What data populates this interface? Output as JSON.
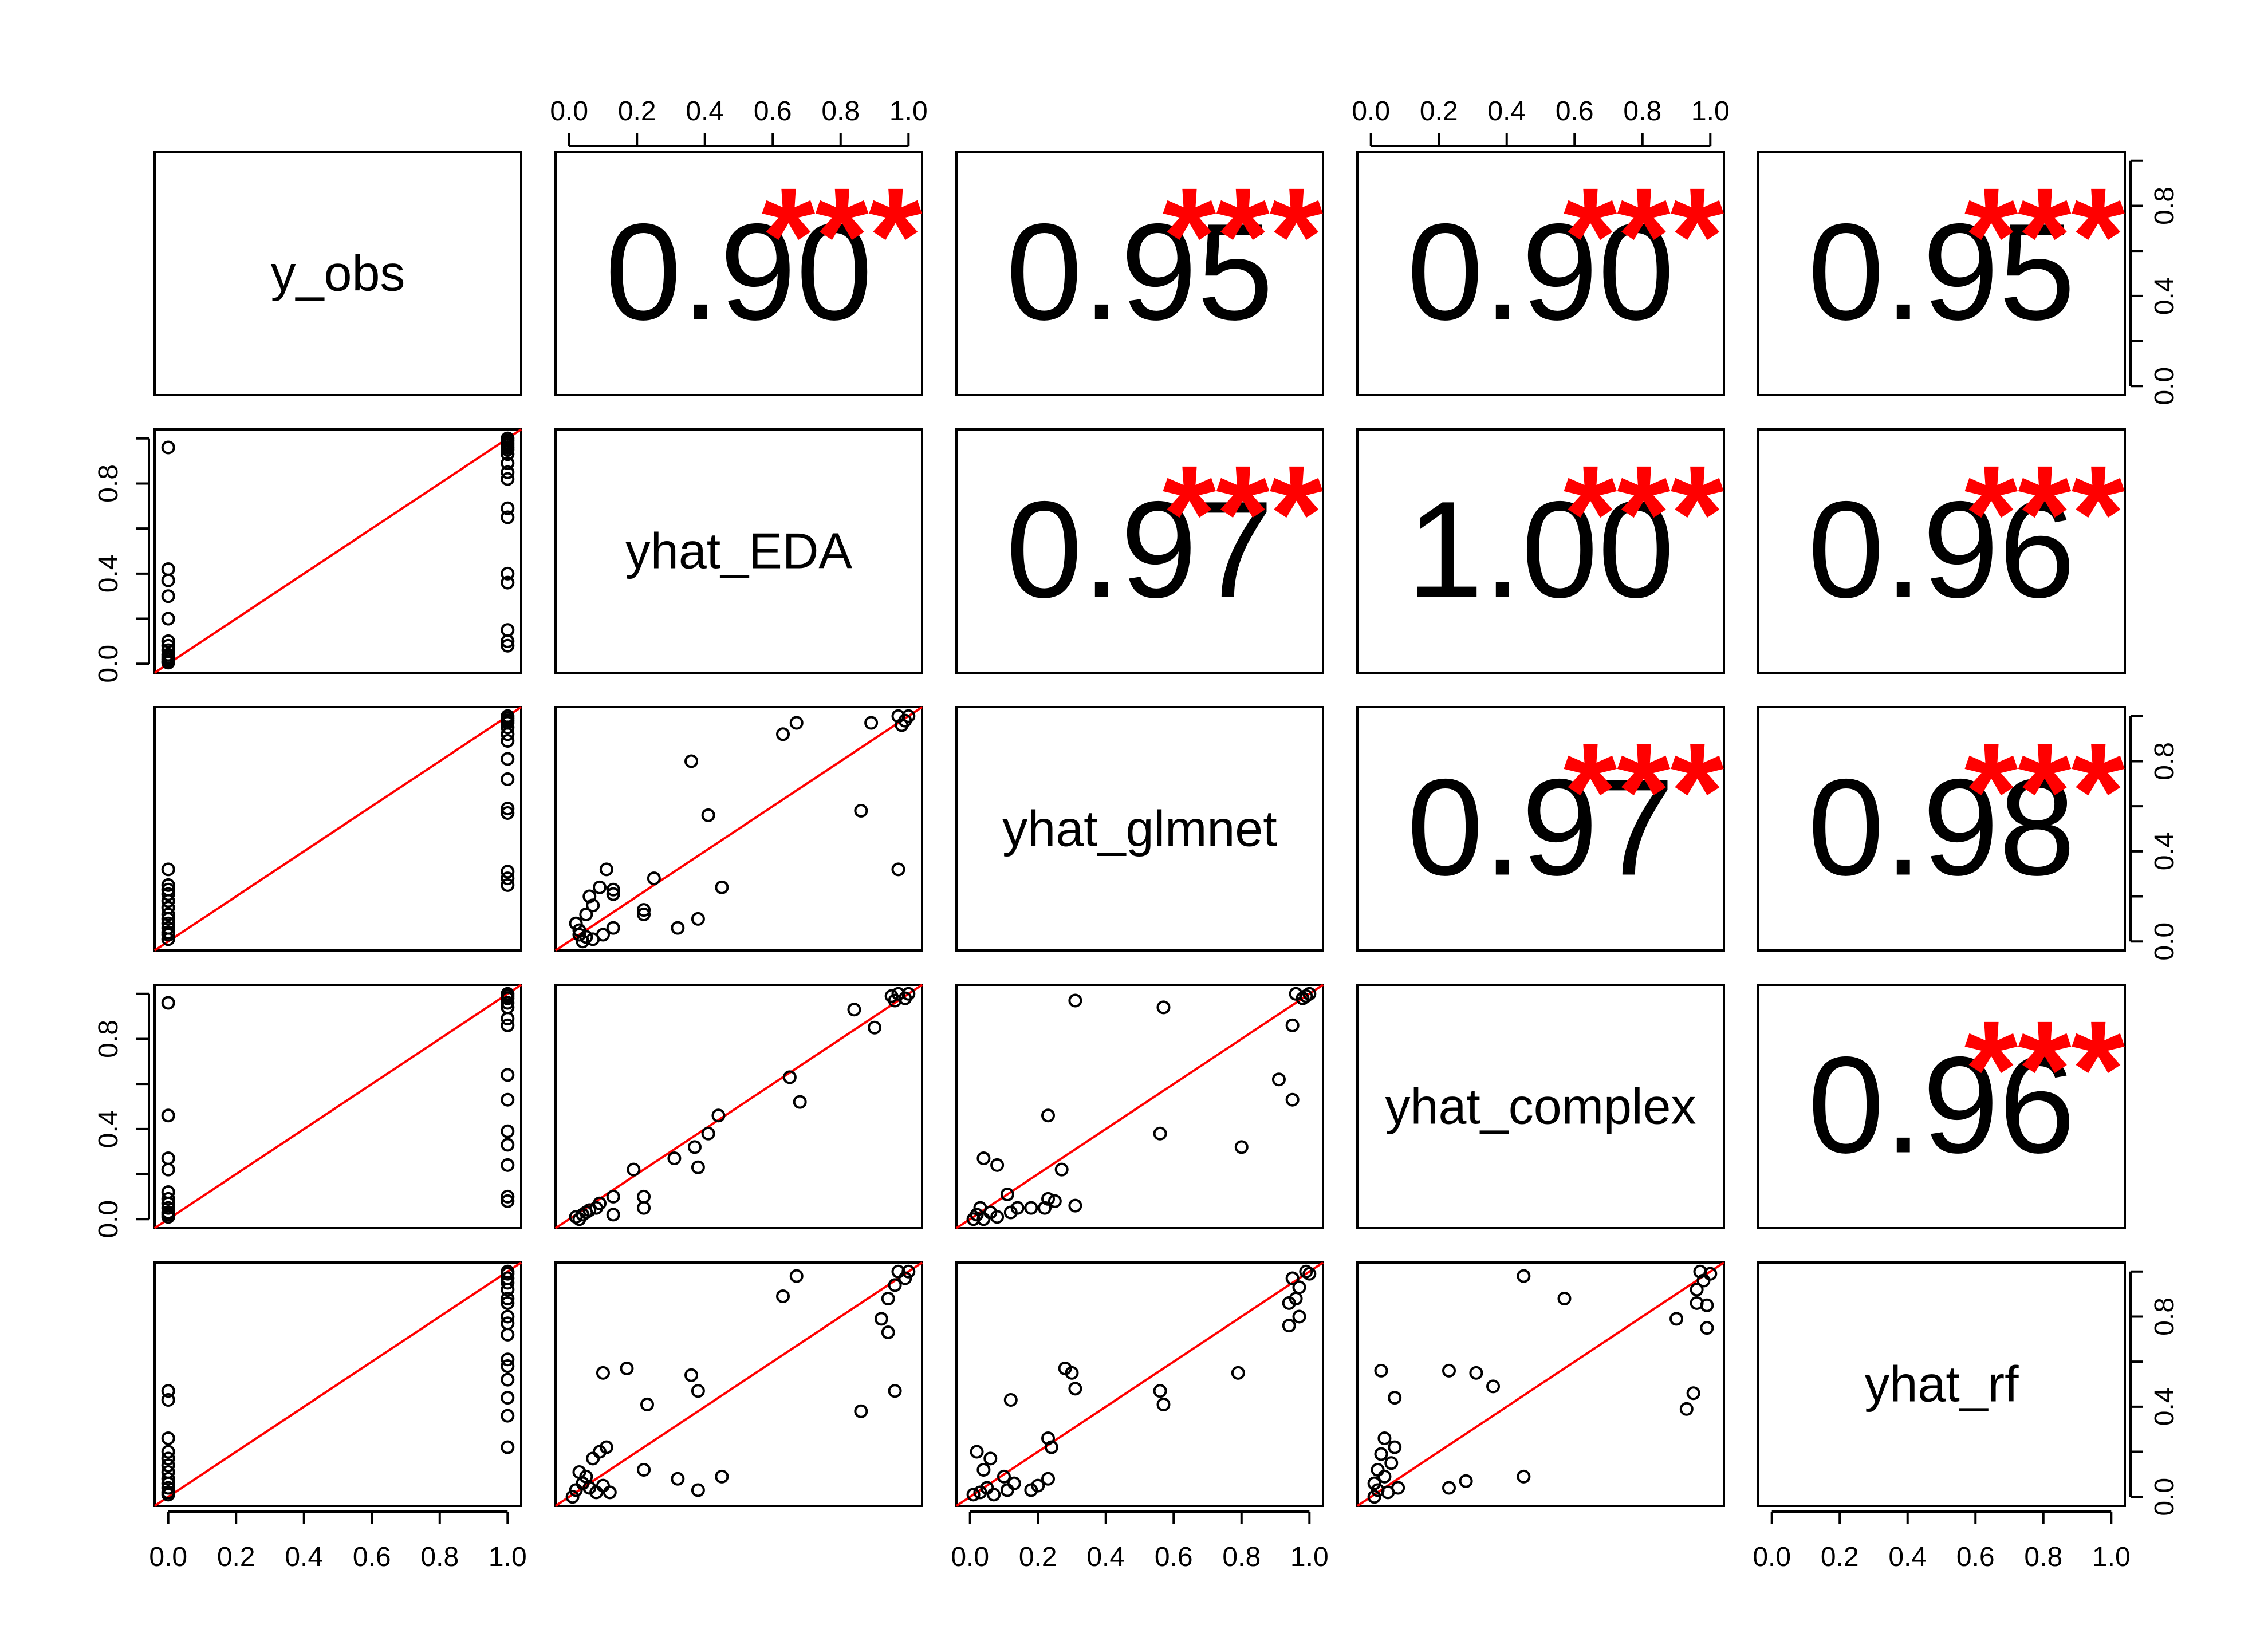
{
  "chart_data": {
    "type": "scatter",
    "variables": [
      "y_obs",
      "yhat_EDA",
      "yhat_glmnet",
      "yhat_complex",
      "yhat_rf"
    ],
    "tick_labels": [
      "0.0",
      "0.2",
      "0.4",
      "0.6",
      "0.8",
      "1.0"
    ],
    "x_range": [
      -0.04,
      1.04
    ],
    "y_range": [
      -0.04,
      1.04
    ],
    "significance": "***",
    "upper_panels": [
      {
        "row": 0,
        "col": 1,
        "text": "0.90"
      },
      {
        "row": 0,
        "col": 2,
        "text": "0.95"
      },
      {
        "row": 0,
        "col": 3,
        "text": "0.90"
      },
      {
        "row": 0,
        "col": 4,
        "text": "0.95"
      },
      {
        "row": 1,
        "col": 2,
        "text": "0.97"
      },
      {
        "row": 1,
        "col": 3,
        "text": "1.00"
      },
      {
        "row": 1,
        "col": 4,
        "text": "0.96"
      },
      {
        "row": 2,
        "col": 3,
        "text": "0.97"
      },
      {
        "row": 2,
        "col": 4,
        "text": "0.98"
      },
      {
        "row": 3,
        "col": 4,
        "text": "0.96"
      }
    ],
    "lower_panels": [
      {
        "row": 1,
        "col": 0,
        "points": [
          [
            0,
            0.96
          ],
          [
            0,
            0.42
          ],
          [
            0,
            0.37
          ],
          [
            0,
            0.3
          ],
          [
            0,
            0.2
          ],
          [
            0,
            0.2
          ],
          [
            0,
            0.1
          ],
          [
            0,
            0.08
          ],
          [
            0,
            0.06
          ],
          [
            0,
            0.04
          ],
          [
            0,
            0.03
          ],
          [
            0,
            0.02
          ],
          [
            0,
            0.01
          ],
          [
            0,
            0.005
          ],
          [
            1,
            1.0
          ],
          [
            1,
            0.99
          ],
          [
            1,
            0.98
          ],
          [
            1,
            0.97
          ],
          [
            1,
            0.96
          ],
          [
            1,
            0.95
          ],
          [
            1,
            0.93
          ],
          [
            1,
            0.89
          ],
          [
            1,
            0.85
          ],
          [
            1,
            0.82
          ],
          [
            1,
            0.69
          ],
          [
            1,
            0.65
          ],
          [
            1,
            0.4
          ],
          [
            1,
            0.36
          ],
          [
            1,
            0.15
          ],
          [
            1,
            0.1
          ],
          [
            1,
            0.08
          ]
        ]
      },
      {
        "row": 2,
        "col": 0,
        "points": [
          [
            0,
            0.32
          ],
          [
            0,
            0.25
          ],
          [
            0,
            0.23
          ],
          [
            0,
            0.21
          ],
          [
            0,
            0.18
          ],
          [
            0,
            0.15
          ],
          [
            0,
            0.12
          ],
          [
            0,
            0.1
          ],
          [
            0,
            0.08
          ],
          [
            0,
            0.06
          ],
          [
            0,
            0.04
          ],
          [
            0,
            0.03
          ],
          [
            0,
            0.01
          ],
          [
            1,
            1.0
          ],
          [
            1,
            0.99
          ],
          [
            1,
            0.98
          ],
          [
            1,
            0.97
          ],
          [
            1,
            0.95
          ],
          [
            1,
            0.92
          ],
          [
            1,
            0.89
          ],
          [
            1,
            0.81
          ],
          [
            1,
            0.72
          ],
          [
            1,
            0.59
          ],
          [
            1,
            0.57
          ],
          [
            1,
            0.31
          ],
          [
            1,
            0.28
          ],
          [
            1,
            0.25
          ]
        ]
      },
      {
        "row": 3,
        "col": 0,
        "points": [
          [
            0,
            0.96
          ],
          [
            0,
            0.46
          ],
          [
            0,
            0.27
          ],
          [
            0,
            0.22
          ],
          [
            0,
            0.12
          ],
          [
            0,
            0.09
          ],
          [
            0,
            0.07
          ],
          [
            0,
            0.05
          ],
          [
            0,
            0.03
          ],
          [
            0,
            0.02
          ],
          [
            0,
            0.01
          ],
          [
            1,
            1.0
          ],
          [
            1,
            0.99
          ],
          [
            1,
            0.98
          ],
          [
            1,
            0.96
          ],
          [
            1,
            0.94
          ],
          [
            1,
            0.89
          ],
          [
            1,
            0.86
          ],
          [
            1,
            0.64
          ],
          [
            1,
            0.53
          ],
          [
            1,
            0.39
          ],
          [
            1,
            0.33
          ],
          [
            1,
            0.24
          ],
          [
            1,
            0.1
          ],
          [
            1,
            0.08
          ]
        ]
      },
      {
        "row": 4,
        "col": 0,
        "points": [
          [
            0,
            0.47
          ],
          [
            0,
            0.43
          ],
          [
            0,
            0.26
          ],
          [
            0,
            0.2
          ],
          [
            0,
            0.17
          ],
          [
            0,
            0.14
          ],
          [
            0,
            0.11
          ],
          [
            0,
            0.08
          ],
          [
            0,
            0.06
          ],
          [
            0,
            0.04
          ],
          [
            0,
            0.02
          ],
          [
            0,
            0.01
          ],
          [
            1,
            1.0
          ],
          [
            1,
            0.99
          ],
          [
            1,
            0.97
          ],
          [
            1,
            0.95
          ],
          [
            1,
            0.92
          ],
          [
            1,
            0.88
          ],
          [
            1,
            0.86
          ],
          [
            1,
            0.8
          ],
          [
            1,
            0.77
          ],
          [
            1,
            0.72
          ],
          [
            1,
            0.61
          ],
          [
            1,
            0.58
          ],
          [
            1,
            0.52
          ],
          [
            1,
            0.44
          ],
          [
            1,
            0.36
          ],
          [
            1,
            0.22
          ]
        ]
      },
      {
        "row": 2,
        "col": 1,
        "points": [
          [
            0.67,
            0.97
          ],
          [
            0.63,
            0.92
          ],
          [
            0.89,
            0.97
          ],
          [
            0.97,
            1.0
          ],
          [
            1.0,
            1.0
          ],
          [
            0.99,
            0.98
          ],
          [
            0.98,
            0.96
          ],
          [
            0.36,
            0.8
          ],
          [
            0.41,
            0.56
          ],
          [
            0.86,
            0.58
          ],
          [
            0.97,
            0.32
          ],
          [
            0.45,
            0.24
          ],
          [
            0.25,
            0.28
          ],
          [
            0.11,
            0.32
          ],
          [
            0.09,
            0.24
          ],
          [
            0.13,
            0.23
          ],
          [
            0.13,
            0.21
          ],
          [
            0.22,
            0.14
          ],
          [
            0.22,
            0.12
          ],
          [
            0.38,
            0.1
          ],
          [
            0.32,
            0.06
          ],
          [
            0.07,
            0.16
          ],
          [
            0.05,
            0.12
          ],
          [
            0.06,
            0.2
          ],
          [
            0.02,
            0.08
          ],
          [
            0.03,
            0.05
          ],
          [
            0.03,
            0.03
          ],
          [
            0.05,
            0.02
          ],
          [
            0.07,
            0.01
          ],
          [
            0.1,
            0.03
          ],
          [
            0.13,
            0.06
          ],
          [
            0.04,
            0.0
          ]
        ]
      },
      {
        "row": 3,
        "col": 1,
        "points": [
          [
            0.95,
            0.99
          ],
          [
            0.97,
            1.0
          ],
          [
            1.0,
            1.0
          ],
          [
            0.99,
            0.98
          ],
          [
            0.96,
            0.97
          ],
          [
            0.84,
            0.93
          ],
          [
            0.9,
            0.85
          ],
          [
            0.65,
            0.63
          ],
          [
            0.68,
            0.52
          ],
          [
            0.44,
            0.46
          ],
          [
            0.41,
            0.38
          ],
          [
            0.37,
            0.32
          ],
          [
            0.38,
            0.23
          ],
          [
            0.31,
            0.27
          ],
          [
            0.19,
            0.22
          ],
          [
            0.22,
            0.1
          ],
          [
            0.22,
            0.05
          ],
          [
            0.13,
            0.1
          ],
          [
            0.13,
            0.02
          ],
          [
            0.09,
            0.07
          ],
          [
            0.08,
            0.05
          ],
          [
            0.06,
            0.04
          ],
          [
            0.05,
            0.03
          ],
          [
            0.04,
            0.02
          ],
          [
            0.02,
            0.01
          ],
          [
            0.03,
            0.0
          ]
        ]
      },
      {
        "row": 3,
        "col": 2,
        "points": [
          [
            0.31,
            0.97
          ],
          [
            0.57,
            0.94
          ],
          [
            0.96,
            1.0
          ],
          [
            0.99,
            0.99
          ],
          [
            1.0,
            1.0
          ],
          [
            0.98,
            0.98
          ],
          [
            0.95,
            0.86
          ],
          [
            0.91,
            0.62
          ],
          [
            0.95,
            0.53
          ],
          [
            0.8,
            0.32
          ],
          [
            0.56,
            0.38
          ],
          [
            0.23,
            0.46
          ],
          [
            0.27,
            0.22
          ],
          [
            0.04,
            0.27
          ],
          [
            0.08,
            0.24
          ],
          [
            0.11,
            0.11
          ],
          [
            0.14,
            0.05
          ],
          [
            0.18,
            0.05
          ],
          [
            0.22,
            0.05
          ],
          [
            0.23,
            0.09
          ],
          [
            0.25,
            0.08
          ],
          [
            0.31,
            0.06
          ],
          [
            0.03,
            0.05
          ],
          [
            0.02,
            0.02
          ],
          [
            0.06,
            0.03
          ],
          [
            0.08,
            0.01
          ],
          [
            0.01,
            0.0
          ],
          [
            0.04,
            0.0
          ],
          [
            0.12,
            0.03
          ]
        ]
      },
      {
        "row": 4,
        "col": 1,
        "points": [
          [
            0.67,
            0.98
          ],
          [
            0.63,
            0.89
          ],
          [
            0.97,
            1.0
          ],
          [
            1.0,
            1.0
          ],
          [
            0.99,
            0.97
          ],
          [
            0.96,
            0.94
          ],
          [
            0.94,
            0.88
          ],
          [
            0.92,
            0.79
          ],
          [
            0.94,
            0.73
          ],
          [
            0.96,
            0.47
          ],
          [
            0.86,
            0.38
          ],
          [
            0.36,
            0.54
          ],
          [
            0.17,
            0.57
          ],
          [
            0.1,
            0.55
          ],
          [
            0.38,
            0.47
          ],
          [
            0.23,
            0.41
          ],
          [
            0.09,
            0.2
          ],
          [
            0.11,
            0.22
          ],
          [
            0.07,
            0.17
          ],
          [
            0.22,
            0.12
          ],
          [
            0.32,
            0.08
          ],
          [
            0.38,
            0.03
          ],
          [
            0.45,
            0.09
          ],
          [
            0.03,
            0.11
          ],
          [
            0.05,
            0.09
          ],
          [
            0.04,
            0.06
          ],
          [
            0.06,
            0.04
          ],
          [
            0.02,
            0.03
          ],
          [
            0.08,
            0.02
          ],
          [
            0.1,
            0.05
          ],
          [
            0.12,
            0.02
          ],
          [
            0.01,
            0.0
          ]
        ]
      },
      {
        "row": 4,
        "col": 2,
        "points": [
          [
            0.95,
            0.97
          ],
          [
            0.99,
            1.0
          ],
          [
            1.0,
            0.99
          ],
          [
            0.97,
            0.93
          ],
          [
            0.94,
            0.86
          ],
          [
            0.96,
            0.88
          ],
          [
            0.94,
            0.76
          ],
          [
            0.97,
            0.8
          ],
          [
            0.79,
            0.55
          ],
          [
            0.56,
            0.47
          ],
          [
            0.57,
            0.41
          ],
          [
            0.28,
            0.57
          ],
          [
            0.3,
            0.55
          ],
          [
            0.31,
            0.48
          ],
          [
            0.12,
            0.43
          ],
          [
            0.23,
            0.26
          ],
          [
            0.24,
            0.22
          ],
          [
            0.02,
            0.2
          ],
          [
            0.06,
            0.17
          ],
          [
            0.04,
            0.12
          ],
          [
            0.1,
            0.09
          ],
          [
            0.13,
            0.06
          ],
          [
            0.18,
            0.03
          ],
          [
            0.2,
            0.05
          ],
          [
            0.23,
            0.08
          ],
          [
            0.01,
            0.01
          ],
          [
            0.03,
            0.02
          ],
          [
            0.05,
            0.04
          ],
          [
            0.07,
            0.01
          ],
          [
            0.11,
            0.03
          ]
        ]
      },
      {
        "row": 4,
        "col": 3,
        "points": [
          [
            0.45,
            0.98
          ],
          [
            0.57,
            0.88
          ],
          [
            0.9,
            0.79
          ],
          [
            0.97,
            1.0
          ],
          [
            1.0,
            0.99
          ],
          [
            0.98,
            0.96
          ],
          [
            0.96,
            0.92
          ],
          [
            0.99,
            0.85
          ],
          [
            0.96,
            0.86
          ],
          [
            0.99,
            0.75
          ],
          [
            0.93,
            0.39
          ],
          [
            0.95,
            0.46
          ],
          [
            0.23,
            0.56
          ],
          [
            0.31,
            0.55
          ],
          [
            0.36,
            0.49
          ],
          [
            0.03,
            0.56
          ],
          [
            0.07,
            0.44
          ],
          [
            0.04,
            0.26
          ],
          [
            0.07,
            0.22
          ],
          [
            0.03,
            0.19
          ],
          [
            0.06,
            0.15
          ],
          [
            0.02,
            0.12
          ],
          [
            0.04,
            0.09
          ],
          [
            0.01,
            0.06
          ],
          [
            0.02,
            0.03
          ],
          [
            0.05,
            0.02
          ],
          [
            0.08,
            0.04
          ],
          [
            0.23,
            0.04
          ],
          [
            0.28,
            0.07
          ],
          [
            0.45,
            0.09
          ],
          [
            0.01,
            0.0
          ]
        ]
      }
    ]
  }
}
